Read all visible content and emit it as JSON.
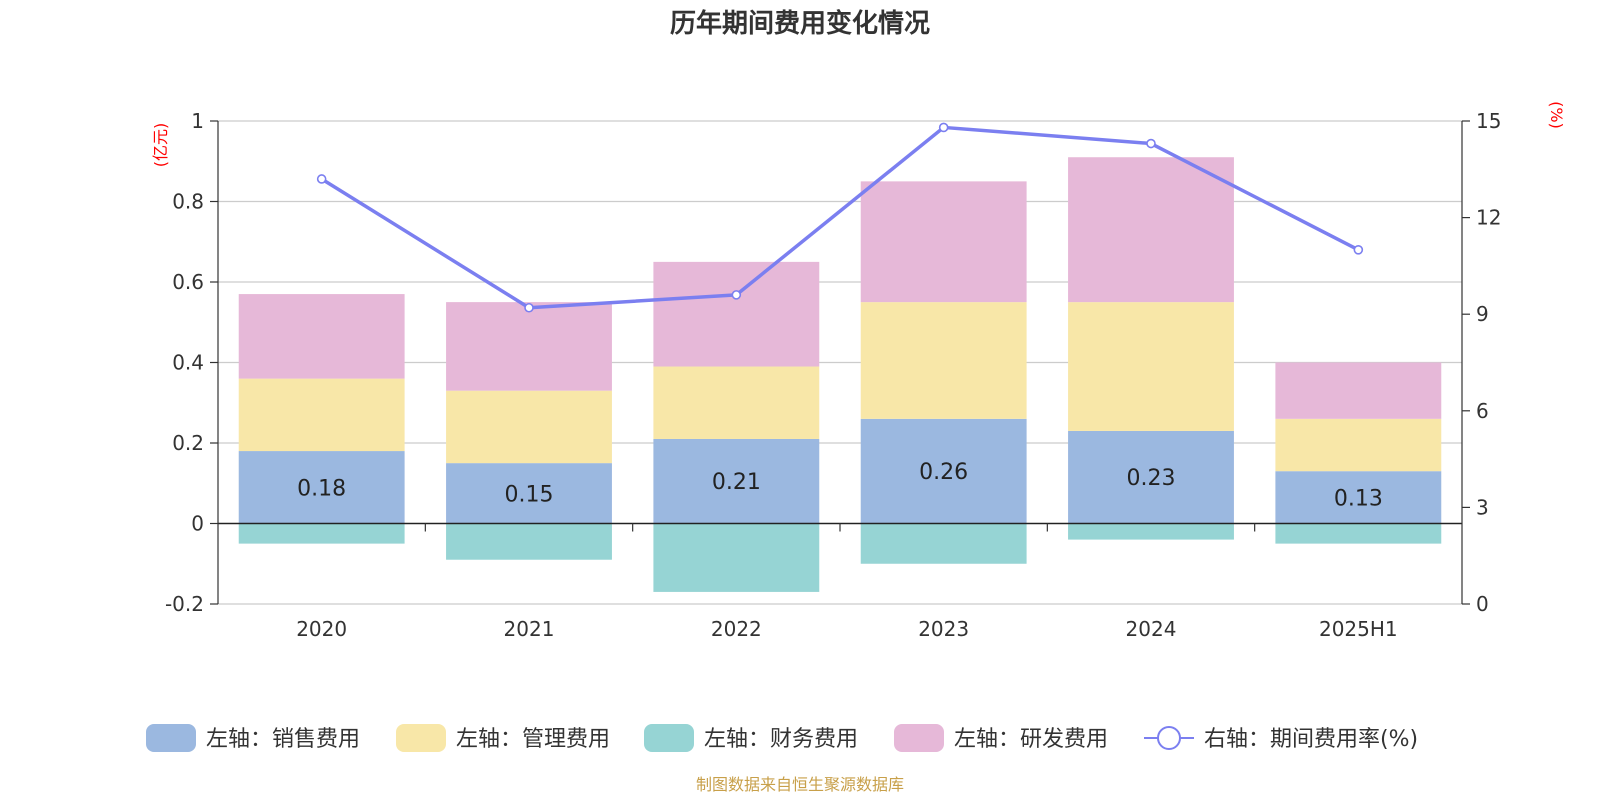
{
  "chart_data": {
    "type": "bar",
    "title": "历年期间费用变化情况",
    "left_unit": "(亿元)",
    "right_unit": "(%)",
    "categories": [
      "2020",
      "2021",
      "2022",
      "2023",
      "2024",
      "2025H1"
    ],
    "left_axis": {
      "ylim": [
        -0.2,
        1.0
      ],
      "ticks": [
        "-0.2",
        "0",
        "0.2",
        "0.4",
        "0.6",
        "0.8",
        "1"
      ]
    },
    "right_axis": {
      "ylim": [
        0,
        15
      ],
      "ticks": [
        "0",
        "3",
        "6",
        "9",
        "12",
        "15"
      ]
    },
    "grid": true,
    "legend_position": "bottom",
    "series": [
      {
        "name": "左轴：销售费用",
        "axis": "left",
        "kind": "bar",
        "color": "#9bb8e0",
        "values": [
          0.18,
          0.15,
          0.21,
          0.26,
          0.23,
          0.13
        ],
        "show_labels": true
      },
      {
        "name": "左轴：管理费用",
        "axis": "left",
        "kind": "bar",
        "color": "#f8e7a8",
        "values": [
          0.18,
          0.18,
          0.18,
          0.29,
          0.32,
          0.13
        ]
      },
      {
        "name": "左轴：财务费用",
        "axis": "left",
        "kind": "bar",
        "color": "#96d4d4",
        "values": [
          -0.05,
          -0.09,
          -0.17,
          -0.1,
          -0.04,
          -0.05
        ]
      },
      {
        "name": "左轴：研发费用",
        "axis": "left",
        "kind": "bar",
        "color": "#e6b8d8",
        "values": [
          0.21,
          0.22,
          0.26,
          0.3,
          0.36,
          0.14
        ]
      },
      {
        "name": "右轴：期间费用率(%)",
        "axis": "right",
        "kind": "line",
        "color": "#7b7ff0",
        "values": [
          13.2,
          9.2,
          9.6,
          14.8,
          14.3,
          11.0
        ]
      }
    ],
    "source": "制图数据来自恒生聚源数据库"
  }
}
